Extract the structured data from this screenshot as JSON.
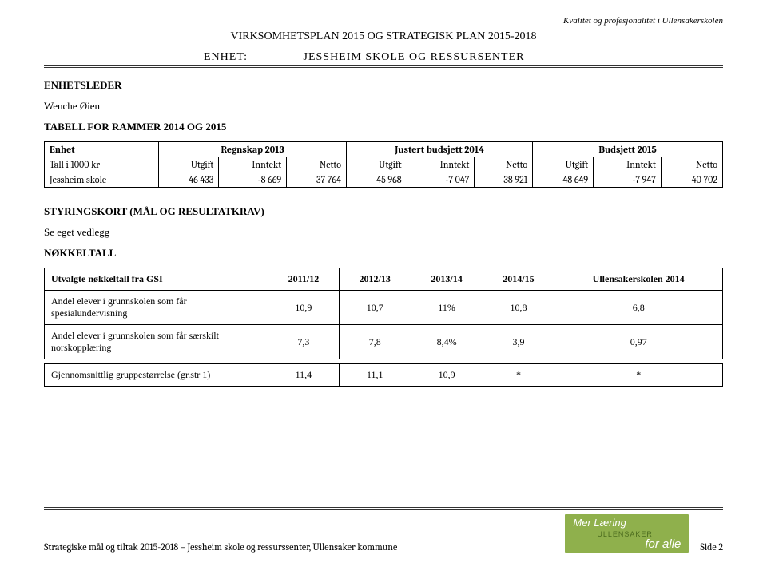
{
  "header": {
    "tagline": "Kvalitet og profesjonalitet i Ullensakerskolen",
    "main_title": "VIRKSOMHETSPLAN 2015 OG STRATEGISK PLAN 2015-2018",
    "enhet_label": "ENHET:",
    "enhet_value": "JESSHEIM SKOLE OG RESSURSENTER"
  },
  "sections": {
    "enhetsleder_title": "ENHETSLEDER",
    "enhetsleder_name": "Wenche Øien",
    "rammer_title": "TABELL FOR RAMMER 2014 OG 2015",
    "styringskort_title": "STYRINGSKORT (MÅL OG RESULTATKRAV)",
    "styringskort_note": "Se eget vedlegg",
    "nokkeltall_title": "NØKKELTALL"
  },
  "budget_table": {
    "row1": {
      "c0": "Enhet",
      "c1": "Regnskap 2013",
      "c2": "Justert budsjett 2014",
      "c3": "Budsjett 2015"
    },
    "row2": {
      "c0": "Tall i 1000 kr",
      "u": "Utgift",
      "i": "Inntekt",
      "n": "Netto"
    },
    "data": {
      "name": "Jessheim skole",
      "r13_u": "46 433",
      "r13_i": "-8 669",
      "r13_n": "37 764",
      "j14_u": "45 968",
      "j14_i": "-7 047",
      "j14_n": "38 921",
      "b15_u": "48 649",
      "b15_i": "-7 947",
      "b15_n": "40 702"
    }
  },
  "gsi_table": {
    "head": {
      "c0": "Utvalgte nøkkeltall fra GSI",
      "c1": "2011/12",
      "c2": "2012/13",
      "c3": "2013/14",
      "c4": "2014/15",
      "c5": "Ullensakerskolen 2014"
    },
    "rows": [
      {
        "label": "Andel elever i grunnskolen som får spesialundervisning",
        "v1": "10,9",
        "v2": "10,7",
        "v3": "11%",
        "v4": "10,8",
        "v5": "6,8"
      },
      {
        "label": "Andel elever i grunnskolen som får særskilt norskopplæring",
        "v1": "7,3",
        "v2": "7,8",
        "v3": "8,4%",
        "v4": "3,9",
        "v5": "0,97"
      },
      {
        "label": "Gjennomsnittlig gruppestørrelse (gr.str 1)",
        "v1": "11,4",
        "v2": "11,1",
        "v3": "10,9",
        "v4": "*",
        "v5": "*"
      }
    ]
  },
  "footer": {
    "text": "Strategiske mål og tiltak 2015-2018 – Jessheim skole og ressurssenter, Ullensaker kommune",
    "page": "Side 2",
    "logo_top": "Mer Læring",
    "logo_mid": "ULLENSAKER",
    "logo_bot": "for alle"
  },
  "style": {
    "bg": "#ffffff",
    "logo_bg": "#8fb04c",
    "logo_dark": "#4b6b1e"
  }
}
